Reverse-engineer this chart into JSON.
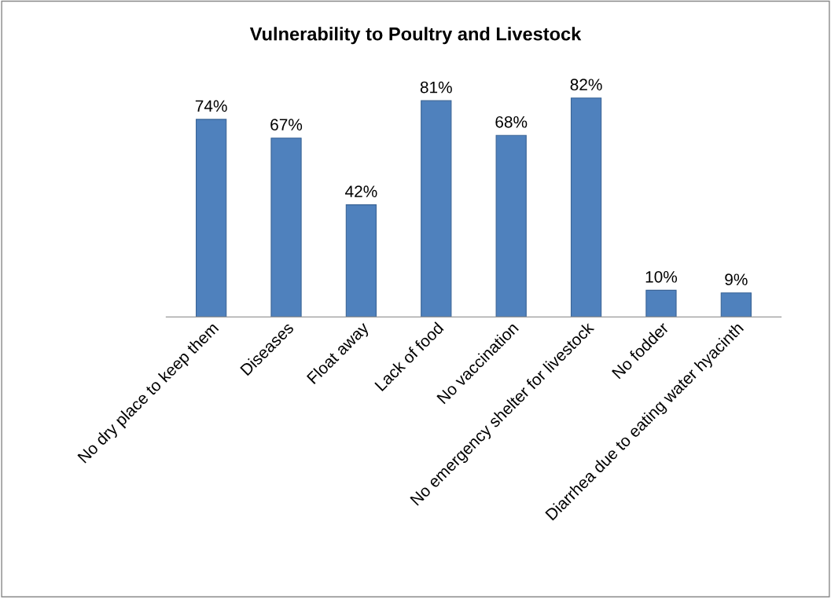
{
  "chart_data": {
    "type": "bar",
    "title": "Vulnerability to Poultry and Livestock",
    "categories": [
      "No dry place to keep them",
      "Diseases",
      "Float away",
      "Lack of food",
      "No vaccination",
      "No emergency shelter for livestock",
      "No fodder",
      "Diarrhea due to eating water hyacinth"
    ],
    "values": [
      74,
      67,
      42,
      81,
      68,
      82,
      10,
      9
    ],
    "value_labels": [
      "74%",
      "67%",
      "42%",
      "81%",
      "68%",
      "82%",
      "10%",
      "9%"
    ],
    "color": "#4f81bd",
    "grid": false,
    "legend": false,
    "tick_labels": "x"
  }
}
